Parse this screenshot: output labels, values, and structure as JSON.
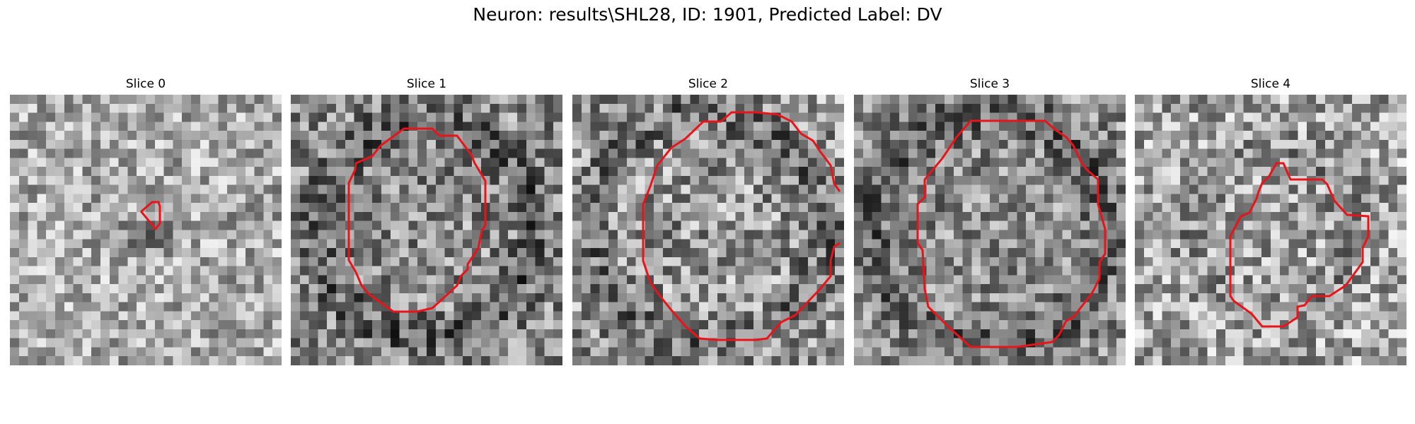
{
  "figure": {
    "title": "Neuron: results\\SHL28, ID: 1901, Predicted Label: DV",
    "contour_color": "#e8141a"
  },
  "panels": [
    {
      "title": "Slice 0"
    },
    {
      "title": "Slice 1"
    },
    {
      "title": "Slice 2"
    },
    {
      "title": "Slice 3"
    },
    {
      "title": "Slice 4"
    }
  ]
}
